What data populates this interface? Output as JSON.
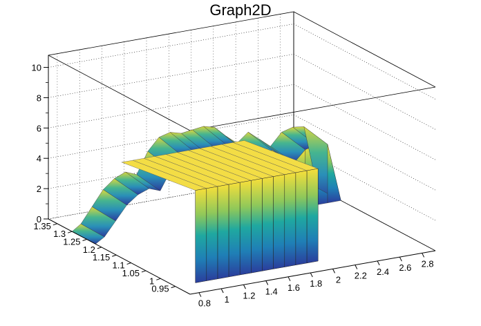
{
  "chart_data": {
    "type": "surface3d",
    "title": "Graph2D",
    "xlabel": "",
    "ylabel": "",
    "zlabel": "",
    "x_ticks": [
      "0.8",
      "1",
      "1.2",
      "1.4",
      "1.6",
      "1.8",
      "2",
      "2.2",
      "2.4",
      "2.6",
      "2.8"
    ],
    "y_ticks": [
      "0.95",
      "1",
      "1.05",
      "1.1",
      "1.15",
      "1.2",
      "1.25",
      "1.3",
      "1.35"
    ],
    "z_ticks": [
      "0",
      "2",
      "4",
      "6",
      "8",
      "10"
    ],
    "xlim": [
      0.72,
      2.92
    ],
    "ylim": [
      0.9,
      1.38
    ],
    "zlim": [
      0,
      10.8
    ],
    "grid": true,
    "palette": "viridis-like",
    "colors": {
      "low": "#2a3f9c",
      "mid": "#1fa8a0",
      "high": "#f6e03a"
    },
    "surface_profile": {
      "x": [
        0.72,
        0.8,
        0.9,
        1.0,
        1.1,
        1.2,
        1.3,
        1.4,
        1.5,
        1.6,
        1.7,
        1.8,
        1.9,
        2.0,
        2.1,
        2.2,
        2.3,
        2.4,
        2.5,
        2.6,
        2.7,
        2.8,
        2.92
      ],
      "z_back": [
        0.0,
        0.4,
        1.4,
        2.4,
        3.0,
        3.3,
        3.0,
        4.4,
        5.2,
        5.4,
        5.2,
        5.3,
        5.4,
        5.2,
        4.5,
        3.9,
        4.5,
        3.9,
        3.3,
        4.1,
        4.3,
        4.2,
        0.0
      ],
      "z_front_plateau": [
        0.0,
        0.0,
        6.1,
        6.1,
        6.1,
        6.1,
        6.1,
        6.1,
        6.1,
        6.1,
        6.1,
        6.1,
        6.1,
        6.1,
        0.0,
        0.0,
        0.0,
        0.0,
        0.0,
        0.0,
        0.0,
        0.0,
        0.0
      ]
    }
  }
}
